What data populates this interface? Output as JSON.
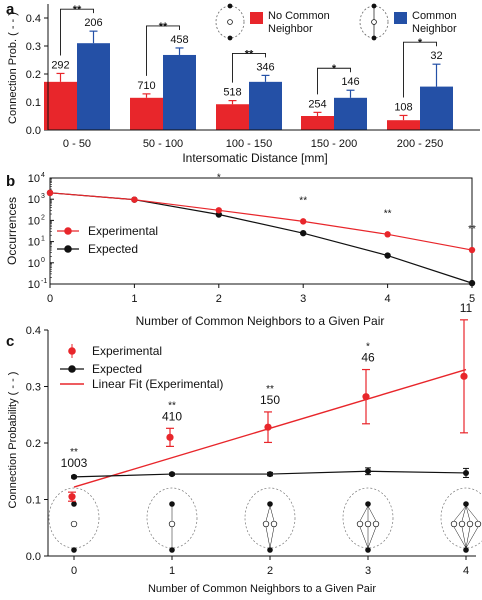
{
  "panels": {
    "a": {
      "letter": "a",
      "chart_data": {
        "type": "bar",
        "categories": [
          "0 - 50",
          "50 - 100",
          "100 - 150",
          "150 - 200",
          "200 - 250"
        ],
        "series": [
          {
            "name": "No Common Neighbor",
            "values": [
              0.172,
              0.115,
              0.092,
              0.05,
              0.035
            ],
            "errors": [
              0.03,
              0.014,
              0.013,
              0.013,
              0.017
            ],
            "counts": [
              "292",
              "710",
              "518",
              "254",
              "108"
            ],
            "color": "#e8262b"
          },
          {
            "name": "Common Neighbor",
            "values": [
              0.31,
              0.268,
              0.172,
              0.115,
              0.155
            ],
            "errors": [
              0.043,
              0.025,
              0.023,
              0.027,
              0.08
            ],
            "counts": [
              "206",
              "458",
              "346",
              "146",
              "32"
            ],
            "color": "#2450a6"
          }
        ],
        "significance": [
          "**",
          "**",
          "**",
          "*",
          "*"
        ],
        "xlabel": "Intersomatic Distance [mm]",
        "ylabel": "Connection Prob. ( - - )",
        "ylim": [
          0,
          0.45
        ],
        "yticks": [
          "0.0",
          "0.1",
          "0.2",
          "0.3",
          "0.4"
        ]
      }
    },
    "b": {
      "letter": "b",
      "chart_data": {
        "type": "line",
        "yscale": "log",
        "x": [
          0,
          1,
          2,
          3,
          4,
          5
        ],
        "series": [
          {
            "name": "Experimental",
            "values": [
              2000,
              950,
              300,
              90,
              22,
              4
            ],
            "color": "#e8262b"
          },
          {
            "name": "Expected",
            "values": [
              2000,
              950,
              190,
              25,
              2.2,
              0.11
            ],
            "color": "#111111"
          }
        ],
        "significance": [
          "",
          "",
          "*",
          "**",
          "**",
          "**"
        ],
        "xlabel": "Number of Common Neighbors to a Given Pair",
        "ylabel": "Occurrences",
        "ylim": [
          0.1,
          10000
        ],
        "yticks": [
          "10",
          "10",
          "10",
          "10",
          "10",
          "10"
        ],
        "ytick_exponents": [
          "-1",
          "0",
          "1",
          "2",
          "3",
          "4"
        ],
        "xticks": [
          "0",
          "1",
          "2",
          "3",
          "4",
          "5"
        ]
      }
    },
    "c": {
      "letter": "c",
      "chart_data": {
        "type": "scatter",
        "x": [
          0,
          1,
          2,
          3,
          4
        ],
        "series": [
          {
            "name": "Experimental",
            "values": [
              0.105,
              0.21,
              0.228,
              0.282,
              0.318
            ],
            "errors": [
              0.008,
              0.016,
              0.027,
              0.048,
              0.1
            ],
            "color": "#e8262b"
          },
          {
            "name": "Expected",
            "values": [
              0.14,
              0.145,
              0.145,
              0.15,
              0.147
            ],
            "errors": [
              0.002,
              0.002,
              0.003,
              0.006,
              0.008
            ],
            "color": "#111111"
          },
          {
            "name": "Linear Fit (Experimental)",
            "values": [
              0.122,
              0.174,
              0.226,
              0.278,
              0.33
            ],
            "color": "#e8262b"
          }
        ],
        "counts": [
          "1003",
          "410",
          "150",
          "46",
          "11"
        ],
        "significance": [
          "**",
          "**",
          "**",
          "*",
          ""
        ],
        "xlabel": "Number of Common Neighbors to a Given Pair",
        "ylabel": "Connection Probability ( - - )",
        "ylim": [
          0,
          0.4
        ],
        "yticks": [
          "0.0",
          "0.1",
          "0.2",
          "0.3",
          "0.4"
        ],
        "xticks": [
          "0",
          "1",
          "2",
          "3",
          "4"
        ]
      }
    }
  }
}
